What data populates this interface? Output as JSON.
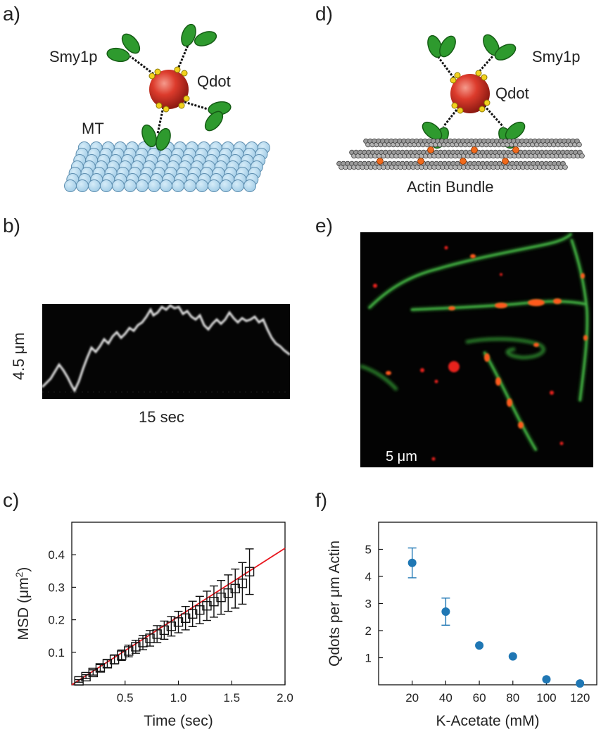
{
  "panels": {
    "a": {
      "label": "a)",
      "labels": {
        "smy1p": "Smy1p",
        "qdot": "Qdot",
        "mt": "MT"
      }
    },
    "b": {
      "label": "b)",
      "ylabel": "4.5 μm",
      "xlabel": "15 sec"
    },
    "d": {
      "label": "d)",
      "labels": {
        "smy1p": "Smy1p",
        "qdot": "Qdot",
        "bundle": "Actin Bundle"
      }
    },
    "e": {
      "label": "e)",
      "scalebar": "5 μm"
    },
    "c": {
      "label": "c)"
    },
    "f": {
      "label": "f)"
    }
  },
  "chart_data": [
    {
      "panel": "c",
      "type": "scatter",
      "xlabel": "Time (sec)",
      "ylabel_main": "MSD (μm",
      "ylabel_sup": "2",
      "ylabel_tail": ")",
      "xlim": [
        0,
        2.0
      ],
      "ylim": [
        0,
        0.5
      ],
      "xticks": [
        "0.5",
        "1.0",
        "1.5",
        "2.0"
      ],
      "xtick_values": [
        0.5,
        1.0,
        1.5,
        2.0
      ],
      "yticks": [
        "0.1",
        "0.2",
        "0.3",
        "0.4"
      ],
      "ytick_values": [
        0.1,
        0.2,
        0.3,
        0.4
      ],
      "fit": {
        "slope": 0.21,
        "intercept": 0.0,
        "color": "#e8141c"
      },
      "points": [
        {
          "x": 0.067,
          "y": 0.012,
          "err": 0.004
        },
        {
          "x": 0.133,
          "y": 0.025,
          "err": 0.006
        },
        {
          "x": 0.2,
          "y": 0.038,
          "err": 0.008
        },
        {
          "x": 0.267,
          "y": 0.052,
          "err": 0.01
        },
        {
          "x": 0.333,
          "y": 0.065,
          "err": 0.012
        },
        {
          "x": 0.4,
          "y": 0.078,
          "err": 0.014
        },
        {
          "x": 0.467,
          "y": 0.091,
          "err": 0.016
        },
        {
          "x": 0.533,
          "y": 0.104,
          "err": 0.018
        },
        {
          "x": 0.6,
          "y": 0.117,
          "err": 0.02
        },
        {
          "x": 0.667,
          "y": 0.13,
          "err": 0.022
        },
        {
          "x": 0.733,
          "y": 0.143,
          "err": 0.024
        },
        {
          "x": 0.8,
          "y": 0.156,
          "err": 0.026
        },
        {
          "x": 0.867,
          "y": 0.168,
          "err": 0.028
        },
        {
          "x": 0.933,
          "y": 0.18,
          "err": 0.03
        },
        {
          "x": 1.0,
          "y": 0.193,
          "err": 0.033
        },
        {
          "x": 1.067,
          "y": 0.205,
          "err": 0.036
        },
        {
          "x": 1.133,
          "y": 0.218,
          "err": 0.039
        },
        {
          "x": 1.2,
          "y": 0.23,
          "err": 0.042
        },
        {
          "x": 1.267,
          "y": 0.243,
          "err": 0.045
        },
        {
          "x": 1.333,
          "y": 0.256,
          "err": 0.048
        },
        {
          "x": 1.4,
          "y": 0.269,
          "err": 0.052
        },
        {
          "x": 1.467,
          "y": 0.282,
          "err": 0.056
        },
        {
          "x": 1.533,
          "y": 0.296,
          "err": 0.06
        },
        {
          "x": 1.6,
          "y": 0.312,
          "err": 0.064
        },
        {
          "x": 1.667,
          "y": 0.348,
          "err": 0.07
        }
      ]
    },
    {
      "panel": "f",
      "type": "scatter",
      "xlabel": "K-Acetate (mM)",
      "ylabel": "Qdots per μm Actin",
      "xlim": [
        0,
        130
      ],
      "ylim": [
        0,
        6
      ],
      "xticks": [
        "20",
        "40",
        "60",
        "80",
        "100",
        "120"
      ],
      "xtick_values": [
        20,
        40,
        60,
        80,
        100,
        120
      ],
      "yticks": [
        "1",
        "2",
        "3",
        "4",
        "5"
      ],
      "ytick_values": [
        1,
        2,
        3,
        4,
        5
      ],
      "color": "#1f77b4",
      "points": [
        {
          "x": 20,
          "y": 4.5,
          "err": 0.55
        },
        {
          "x": 40,
          "y": 2.7,
          "err": 0.5
        },
        {
          "x": 60,
          "y": 1.45,
          "err": 0
        },
        {
          "x": 80,
          "y": 1.05,
          "err": 0
        },
        {
          "x": 100,
          "y": 0.2,
          "err": 0
        },
        {
          "x": 120,
          "y": 0.05,
          "err": 0
        }
      ]
    }
  ]
}
